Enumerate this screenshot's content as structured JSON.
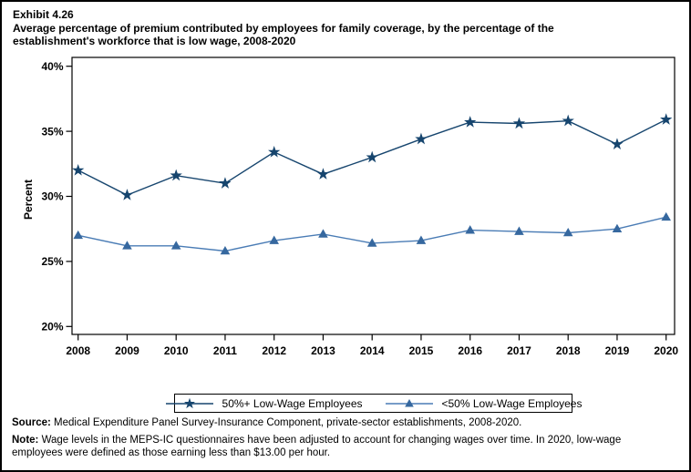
{
  "header": {
    "exhibit": "Exhibit 4.26",
    "title_line1": "Average percentage of premium contributed by employees for family coverage, by the percentage of the",
    "title_line2": "establishment's workforce that is low wage, 2008-2020"
  },
  "chart_data": {
    "type": "line",
    "title": "Average percentage of premium contributed by employees for family coverage, by the percentage of the establishment's workforce that is low wage, 2008-2020",
    "x": [
      2008,
      2009,
      2010,
      2011,
      2012,
      2013,
      2014,
      2015,
      2016,
      2017,
      2018,
      2019,
      2020
    ],
    "series": [
      {
        "name": "50%+ Low-Wage Employees",
        "marker": "star",
        "color": "#16456E",
        "line_color": "#16456E",
        "values": [
          32.0,
          30.1,
          31.6,
          31.0,
          33.4,
          31.7,
          33.0,
          34.4,
          35.7,
          35.6,
          35.8,
          34.0,
          35.9
        ]
      },
      {
        "name": "<50% Low-Wage Employees",
        "marker": "triangle",
        "color": "#36689F",
        "line_color": "#4A7CB5",
        "values": [
          27.0,
          26.2,
          26.2,
          25.8,
          26.6,
          27.1,
          26.4,
          26.6,
          27.4,
          27.3,
          27.2,
          27.5,
          28.4
        ]
      }
    ],
    "ylabel": "Percent",
    "yticks": [
      20,
      25,
      30,
      35,
      40
    ],
    "ytick_suffix": "%",
    "ylim": [
      19.4,
      40.7
    ],
    "grid": false,
    "legend_position": "bottom"
  },
  "footnotes": {
    "source_label": "Source:",
    "source_text": " Medical Expenditure Panel Survey-Insurance Component, private-sector establishments, 2008-2020.",
    "note_label": "Note:",
    "note_text": " Wage levels in the MEPS-IC questionnaires have been adjusted to account for changing wages over time.  In 2020, low-wage employees were defined as those earning less than $13.00 per hour."
  }
}
